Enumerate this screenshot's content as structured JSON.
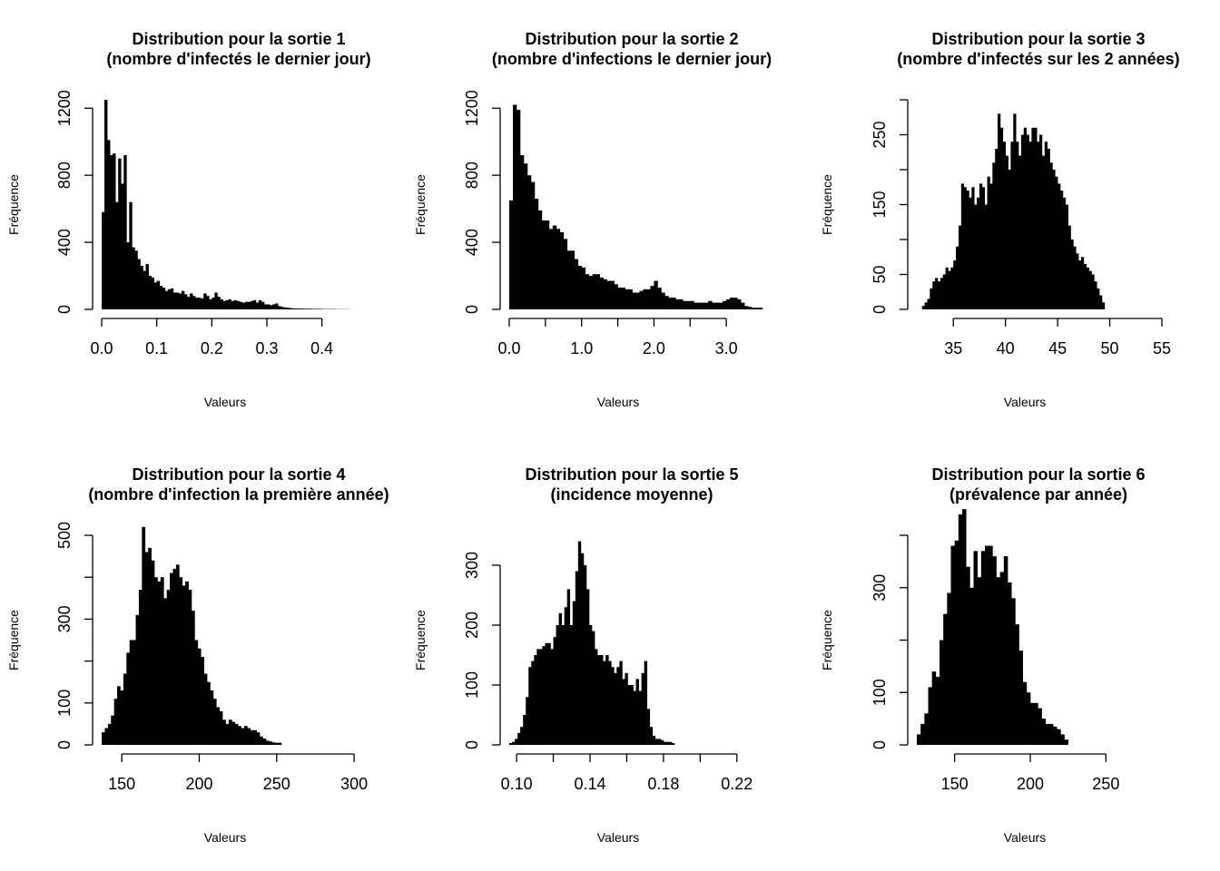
{
  "chart_data": [
    {
      "type": "bar",
      "title": "Distribution pour la sortie 1",
      "subtitle": "(nombre d'infectés le dernier jour)",
      "xlabel": "Valeurs",
      "ylabel": "Fréquence",
      "xlim": [
        0,
        0.45
      ],
      "ylim": [
        0,
        1250
      ],
      "x_ticks": [
        0.0,
        0.1,
        0.2,
        0.3,
        0.4
      ],
      "x_tick_labels": [
        "0.0",
        "0.1",
        "0.2",
        "0.3",
        "0.4"
      ],
      "y_ticks": [
        0,
        400,
        800,
        1200
      ],
      "y_tick_labels": [
        "0",
        "400",
        "800",
        "1200"
      ],
      "bin_start": 0.0,
      "bin_width": 0.005,
      "values": [
        580,
        1250,
        1010,
        920,
        930,
        640,
        900,
        750,
        920,
        400,
        640,
        370,
        350,
        300,
        260,
        230,
        270,
        200,
        190,
        160,
        170,
        140,
        130,
        110,
        120,
        125,
        100,
        100,
        95,
        110,
        90,
        75,
        95,
        80,
        70,
        70,
        65,
        95,
        80,
        60,
        70,
        100,
        75,
        60,
        50,
        55,
        60,
        50,
        55,
        50,
        45,
        40,
        45,
        45,
        50,
        55,
        40,
        55,
        45,
        30,
        30,
        25,
        30,
        35,
        20,
        15,
        12,
        10,
        8,
        6,
        5,
        5,
        5,
        4,
        4,
        4,
        3,
        3,
        3,
        3,
        2,
        2,
        2,
        2,
        2,
        1,
        1,
        1,
        1,
        1
      ]
    },
    {
      "type": "bar",
      "title": "Distribution pour la sortie 2",
      "subtitle": "(nombre d'infections le dernier jour)",
      "xlabel": "Valeurs",
      "ylabel": "Fréquence",
      "xlim": [
        0,
        3.4
      ],
      "ylim": [
        0,
        1250
      ],
      "x_ticks": [
        0.0,
        0.5,
        1.0,
        1.5,
        2.0,
        2.5,
        3.0
      ],
      "x_tick_labels": [
        "0.0",
        "",
        "1.0",
        "",
        "2.0",
        "",
        "3.0"
      ],
      "y_ticks": [
        0,
        400,
        800,
        1200
      ],
      "y_tick_labels": [
        "0",
        "400",
        "800",
        "1200"
      ],
      "bin_start": 0.0,
      "bin_width": 0.05,
      "values": [
        650,
        1220,
        1190,
        920,
        870,
        800,
        760,
        660,
        590,
        530,
        530,
        480,
        500,
        480,
        460,
        420,
        350,
        350,
        300,
        260,
        250,
        210,
        200,
        210,
        210,
        190,
        180,
        170,
        170,
        150,
        130,
        130,
        120,
        120,
        100,
        100,
        110,
        120,
        120,
        140,
        170,
        130,
        100,
        80,
        70,
        70,
        60,
        60,
        50,
        50,
        50,
        40,
        40,
        40,
        40,
        50,
        40,
        40,
        40,
        50,
        60,
        70,
        70,
        60,
        40,
        20,
        15,
        10,
        10,
        10
      ]
    },
    {
      "type": "bar",
      "title": "Distribution pour la sortie 3",
      "subtitle": "(nombre d'infectés sur les 2 années)",
      "xlabel": "Valeurs",
      "ylabel": "Fréquence",
      "xlim": [
        31.5,
        55
      ],
      "ylim": [
        0,
        300
      ],
      "x_ticks": [
        35,
        40,
        45,
        50,
        55
      ],
      "x_tick_labels": [
        "35",
        "40",
        "45",
        "50",
        "55"
      ],
      "y_ticks": [
        0,
        50,
        100,
        150,
        200,
        250,
        300
      ],
      "y_tick_labels": [
        "0",
        "50",
        "",
        "150",
        "",
        "250",
        ""
      ],
      "bin_start": 32.0,
      "bin_width": 0.25,
      "values": [
        5,
        10,
        15,
        30,
        40,
        45,
        40,
        45,
        50,
        60,
        55,
        60,
        70,
        90,
        120,
        180,
        175,
        170,
        160,
        175,
        150,
        160,
        180,
        175,
        150,
        190,
        180,
        210,
        230,
        280,
        260,
        240,
        220,
        200,
        240,
        280,
        240,
        220,
        250,
        260,
        250,
        240,
        260,
        260,
        240,
        250,
        220,
        240,
        230,
        210,
        200,
        190,
        180,
        170,
        160,
        150,
        120,
        100,
        90,
        80,
        70,
        75,
        65,
        60,
        55,
        50,
        40,
        30,
        20,
        10
      ]
    },
    {
      "type": "bar",
      "title": "Distribution pour la sortie 4",
      "subtitle": "(nombre d'infection la première année)",
      "xlabel": "Valeurs",
      "ylabel": "Fréquence",
      "xlim": [
        137,
        297
      ],
      "ylim": [
        0,
        500
      ],
      "x_ticks": [
        150,
        200,
        250,
        300
      ],
      "x_tick_labels": [
        "150",
        "200",
        "250",
        "300"
      ],
      "y_ticks": [
        0,
        100,
        200,
        300,
        400,
        500
      ],
      "y_tick_labels": [
        "0",
        "100",
        "",
        "300",
        "",
        "500"
      ],
      "bin_start": 137,
      "bin_width": 2,
      "values": [
        30,
        40,
        50,
        70,
        110,
        140,
        130,
        170,
        220,
        250,
        250,
        310,
        370,
        520,
        460,
        470,
        440,
        400,
        390,
        400,
        350,
        370,
        410,
        420,
        430,
        400,
        380,
        390,
        370,
        320,
        250,
        230,
        210,
        170,
        150,
        130,
        110,
        90,
        80,
        60,
        50,
        60,
        55,
        50,
        45,
        40,
        45,
        40,
        35,
        35,
        30,
        20,
        15,
        10,
        8,
        6,
        5,
        5
      ]
    },
    {
      "type": "bar",
      "title": "Distribution pour la sortie 5",
      "subtitle": "(incidence moyenne)",
      "xlabel": "Valeurs",
      "ylabel": "Fréquence",
      "xlim": [
        0.096,
        0.23
      ],
      "ylim": [
        0,
        350
      ],
      "x_ticks": [
        0.1,
        0.12,
        0.14,
        0.16,
        0.18,
        0.2,
        0.22
      ],
      "x_tick_labels": [
        "0.10",
        "",
        "0.14",
        "",
        "0.18",
        "",
        "0.22"
      ],
      "y_ticks": [
        0,
        100,
        200,
        300
      ],
      "y_tick_labels": [
        "0",
        "100",
        "200",
        "300"
      ],
      "bin_start": 0.096,
      "bin_width": 0.0015,
      "values": [
        3,
        5,
        10,
        20,
        30,
        50,
        80,
        130,
        140,
        150,
        160,
        160,
        165,
        170,
        170,
        160,
        180,
        200,
        220,
        200,
        230,
        260,
        200,
        240,
        290,
        340,
        320,
        300,
        260,
        200,
        190,
        160,
        150,
        150,
        140,
        150,
        140,
        130,
        120,
        130,
        140,
        110,
        120,
        100,
        100,
        90,
        110,
        90,
        120,
        140,
        60,
        30,
        15,
        10,
        10,
        8,
        5,
        5,
        5,
        3
      ]
    },
    {
      "type": "bar",
      "title": "Distribution pour la sortie 6",
      "subtitle": "(prévalence par année)",
      "xlabel": "Valeurs",
      "ylabel": "Fréquence",
      "xlim": [
        125,
        287
      ],
      "ylim": [
        0,
        400
      ],
      "x_ticks": [
        150,
        200,
        250
      ],
      "x_tick_labels": [
        "150",
        "200",
        "250"
      ],
      "y_ticks": [
        0,
        100,
        200,
        300,
        400
      ],
      "y_tick_labels": [
        "0",
        "100",
        "",
        "300",
        ""
      ],
      "bin_start": 125,
      "bin_width": 2.5,
      "values": [
        20,
        40,
        60,
        110,
        140,
        130,
        200,
        250,
        290,
        380,
        390,
        440,
        450,
        340,
        300,
        370,
        320,
        370,
        380,
        380,
        360,
        320,
        330,
        360,
        310,
        280,
        230,
        180,
        120,
        100,
        80,
        80,
        70,
        50,
        40,
        40,
        35,
        30,
        20,
        10
      ]
    }
  ]
}
